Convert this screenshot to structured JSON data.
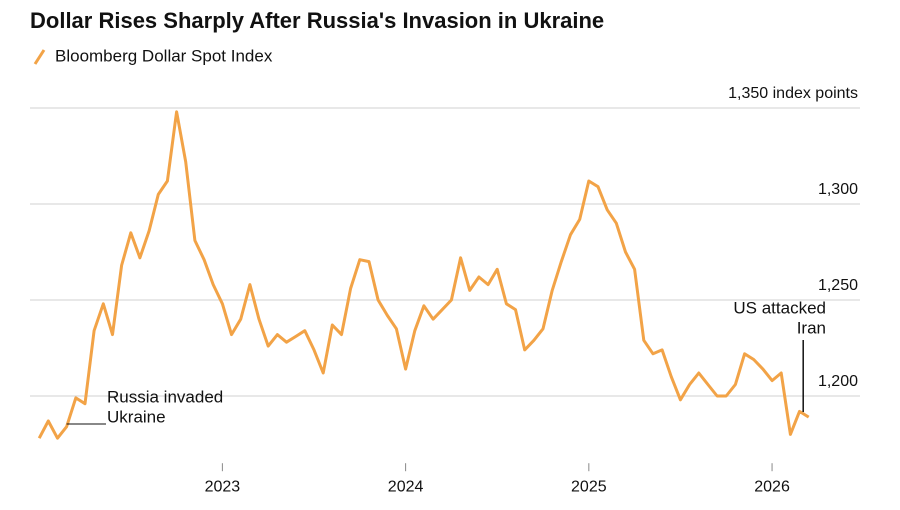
{
  "chart_data": {
    "type": "line",
    "title": "Dollar Rises Sharply After Russia's Invasion in Ukraine",
    "x": [
      2022.0,
      2022.05,
      2022.1,
      2022.15,
      2022.2,
      2022.25,
      2022.3,
      2022.35,
      2022.4,
      2022.45,
      2022.5,
      2022.55,
      2022.6,
      2022.65,
      2022.7,
      2022.75,
      2022.8,
      2022.85,
      2022.9,
      2022.95,
      2023.0,
      2023.05,
      2023.1,
      2023.15,
      2023.2,
      2023.25,
      2023.3,
      2023.35,
      2023.4,
      2023.45,
      2023.5,
      2023.55,
      2023.6,
      2023.65,
      2023.7,
      2023.75,
      2023.8,
      2023.85,
      2023.9,
      2023.95,
      2024.0,
      2024.05,
      2024.1,
      2024.15,
      2024.2,
      2024.25,
      2024.3,
      2024.35,
      2024.4,
      2024.45,
      2024.5,
      2024.55,
      2024.6,
      2024.65,
      2024.7,
      2024.75,
      2024.8,
      2024.85,
      2024.9,
      2024.95,
      2025.0,
      2025.05,
      2025.1,
      2025.15,
      2025.2,
      2025.25,
      2025.3,
      2025.35,
      2025.4,
      2025.45,
      2025.5,
      2025.55,
      2025.6,
      2025.65,
      2025.7,
      2025.75,
      2025.8,
      2025.85,
      2025.9,
      2025.95,
      2026.0,
      2026.05,
      2026.1,
      2026.15,
      2026.2
    ],
    "series": [
      {
        "name": "Bloomberg Dollar Spot Index",
        "color": "#f2a347",
        "values": [
          1178,
          1187,
          1178,
          1184,
          1199,
          1196,
          1234,
          1248,
          1232,
          1268,
          1285,
          1272,
          1286,
          1305,
          1312,
          1348,
          1322,
          1281,
          1271,
          1258,
          1248,
          1232,
          1240,
          1258,
          1240,
          1226,
          1232,
          1228,
          1231,
          1234,
          1224,
          1212,
          1237,
          1232,
          1256,
          1271,
          1270,
          1250,
          1242,
          1235,
          1214,
          1234,
          1247,
          1240,
          1245,
          1250,
          1272,
          1255,
          1262,
          1258,
          1266,
          1248,
          1245,
          1224,
          1229,
          1235,
          1255,
          1270,
          1284,
          1292,
          1312,
          1309,
          1297,
          1290,
          1275,
          1266,
          1229,
          1222,
          1224,
          1210,
          1198,
          1206,
          1212,
          1206,
          1200,
          1200,
          1206,
          1222,
          1219,
          1214,
          1208,
          1212,
          1180,
          1192,
          1189
        ]
      }
    ],
    "xlim": [
      2021.95,
      2026.48
    ],
    "xticks": [
      2023,
      2024,
      2025,
      2026
    ],
    "ylim": [
      1165,
      1355
    ],
    "yticks": [
      {
        "value": 1200,
        "label": "1,200"
      },
      {
        "value": 1250,
        "label": "1,250"
      },
      {
        "value": 1300,
        "label": "1,300"
      },
      {
        "value": 1350,
        "label": "1,350 index points"
      }
    ],
    "grid": true,
    "annotations": [
      {
        "x": 2022.15,
        "lines": [
          "Russia invaded",
          "Ukraine"
        ]
      },
      {
        "x": 2026.17,
        "lines": [
          "US attacked",
          "Iran"
        ]
      }
    ]
  }
}
